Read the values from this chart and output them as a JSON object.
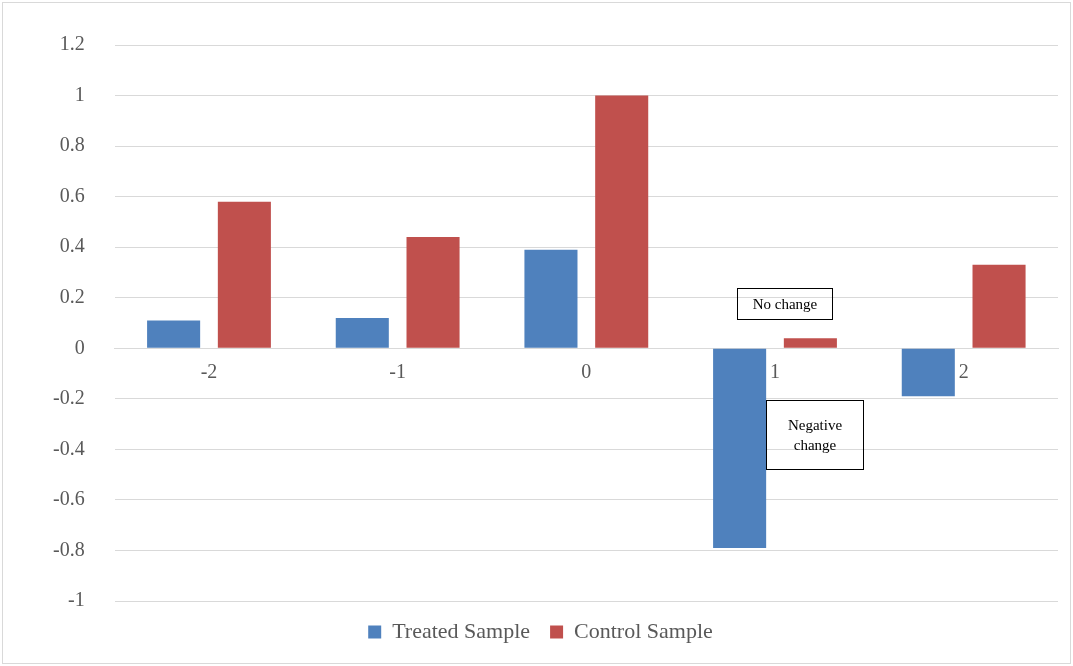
{
  "chart_data": {
    "type": "bar",
    "categories": [
      "-2",
      "-1",
      "0",
      "1",
      "2"
    ],
    "series": [
      {
        "name": "Treated Sample",
        "color": "#4f81bd",
        "values": [
          0.11,
          0.12,
          0.39,
          -0.79,
          -0.19
        ]
      },
      {
        "name": "Control Sample",
        "color": "#c0504d",
        "values": [
          0.58,
          0.44,
          1.0,
          0.04,
          0.33
        ]
      }
    ],
    "ylim": [
      -1,
      1.2
    ],
    "yticks": [
      -1,
      -0.8,
      -0.6,
      -0.4,
      -0.2,
      0,
      0.2,
      0.4,
      0.6,
      0.8,
      1,
      1.2
    ],
    "grid": "y",
    "legend": "bottom",
    "annotations": [
      "No change",
      "Negative change"
    ]
  }
}
